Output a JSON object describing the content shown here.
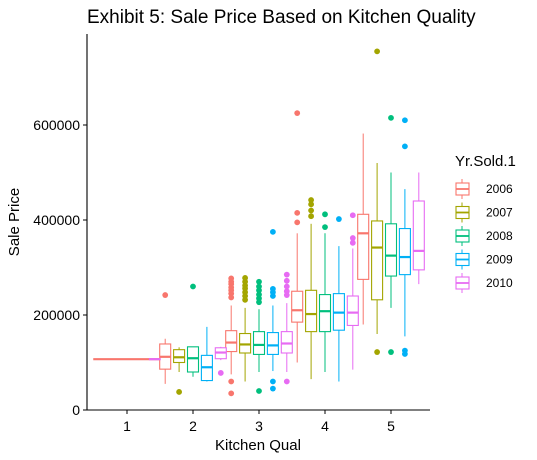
{
  "chart_data": {
    "type": "boxplot",
    "title": "Exhibit 5: Sale Price Based on Kitchen Quality",
    "xlabel": "Kitchen Qual",
    "ylabel": "Sale Price",
    "categories": [
      "1",
      "2",
      "3",
      "4",
      "5"
    ],
    "ylim": [
      0,
      775000
    ],
    "yticks": [
      0,
      200000,
      400000,
      600000
    ],
    "ytick_labels": [
      "0",
      "200000",
      "400000",
      "600000"
    ],
    "grid": false,
    "legend": {
      "title": "Yr.Sold.1",
      "position": "right"
    },
    "series": [
      {
        "name": "2006",
        "color": "#F8766D",
        "boxes": [
          {
            "category": "1",
            "whisker_low": 107000,
            "q1": 107000,
            "median": 107000,
            "q3": 107000,
            "whisker_high": 107000,
            "outliers": []
          },
          {
            "category": "2",
            "whisker_low": 55000,
            "q1": 86000,
            "median": 112000,
            "q3": 139000,
            "whisker_high": 150000,
            "outliers": [
              242000
            ]
          },
          {
            "category": "3",
            "whisker_low": 75000,
            "q1": 123000,
            "median": 142000,
            "q3": 167000,
            "whisker_high": 220000,
            "outliers": [
              237000,
              245000,
              252000,
              258000,
              265000,
              270000,
              277000,
              60000,
              35000
            ]
          },
          {
            "category": "4",
            "whisker_low": 100000,
            "q1": 185000,
            "median": 210000,
            "q3": 250000,
            "whisker_high": 372000,
            "outliers": [
              395000,
              415000,
              625000
            ]
          },
          {
            "category": "5",
            "whisker_low": 180000,
            "q1": 275000,
            "median": 372000,
            "q3": 412000,
            "whisker_high": 582000,
            "outliers": []
          }
        ]
      },
      {
        "name": "2007",
        "color": "#A3A500",
        "boxes": [
          {
            "category": "2",
            "whisker_low": 80000,
            "q1": 100000,
            "median": 111000,
            "q3": 127000,
            "whisker_high": 132000,
            "outliers": [
              38000
            ]
          },
          {
            "category": "3",
            "whisker_low": 60000,
            "q1": 120000,
            "median": 138000,
            "q3": 161000,
            "whisker_high": 215000,
            "outliers": [
              232000,
              240000,
              248000,
              256000,
              262000,
              270000,
              278000
            ]
          },
          {
            "category": "4",
            "whisker_low": 65000,
            "q1": 165000,
            "median": 202000,
            "q3": 252000,
            "whisker_high": 392000,
            "outliers": [
              408000,
              420000,
              433000,
              442000
            ]
          },
          {
            "category": "5",
            "whisker_low": 160000,
            "q1": 232000,
            "median": 342000,
            "q3": 398000,
            "whisker_high": 520000,
            "outliers": [
              755000,
              122000
            ]
          }
        ]
      },
      {
        "name": "2008",
        "color": "#00BF7D",
        "boxes": [
          {
            "category": "2",
            "whisker_low": 70000,
            "q1": 80000,
            "median": 109000,
            "q3": 133000,
            "whisker_high": 133000,
            "outliers": [
              260000
            ]
          },
          {
            "category": "3",
            "whisker_low": 80000,
            "q1": 117000,
            "median": 137000,
            "q3": 165000,
            "whisker_high": 212000,
            "outliers": [
              227000,
              235000,
              243000,
              252000,
              260000,
              270000,
              40000
            ]
          },
          {
            "category": "4",
            "whisker_low": 80000,
            "q1": 165000,
            "median": 208000,
            "q3": 243000,
            "whisker_high": 372000,
            "outliers": [
              385000,
              412000
            ]
          },
          {
            "category": "5",
            "whisker_low": 215000,
            "q1": 282000,
            "median": 325000,
            "q3": 392000,
            "whisker_high": 500000,
            "outliers": [
              615000,
              122000
            ]
          }
        ]
      },
      {
        "name": "2009",
        "color": "#00B0F6",
        "boxes": [
          {
            "category": "2",
            "whisker_low": 60000,
            "q1": 62000,
            "median": 90000,
            "q3": 115000,
            "whisker_high": 175000,
            "outliers": []
          },
          {
            "category": "3",
            "whisker_low": 82000,
            "q1": 117000,
            "median": 136000,
            "q3": 163000,
            "whisker_high": 220000,
            "outliers": [
              240000,
              248000,
              255000,
              375000,
              60000,
              45000
            ]
          },
          {
            "category": "4",
            "whisker_low": 60000,
            "q1": 168000,
            "median": 205000,
            "q3": 245000,
            "whisker_high": 345000,
            "outliers": [
              402000
            ]
          },
          {
            "category": "5",
            "whisker_low": 155000,
            "q1": 285000,
            "median": 322000,
            "q3": 382000,
            "whisker_high": 465000,
            "outliers": [
              610000,
              555000,
              125000,
              118000
            ]
          }
        ]
      },
      {
        "name": "2010",
        "color": "#E76BF3",
        "boxes": [
          {
            "category": "1",
            "whisker_low": 107000,
            "q1": 107000,
            "median": 107000,
            "q3": 107000,
            "whisker_high": 107000,
            "outliers": []
          },
          {
            "category": "2",
            "whisker_low": 105000,
            "q1": 108000,
            "median": 121000,
            "q3": 131000,
            "whisker_high": 133000,
            "outliers": [
              78000
            ]
          },
          {
            "category": "3",
            "whisker_low": 80000,
            "q1": 120000,
            "median": 140000,
            "q3": 165000,
            "whisker_high": 225000,
            "outliers": [
              242000,
              250000,
              260000,
              272000,
              285000,
              60000
            ]
          },
          {
            "category": "4",
            "whisker_low": 85000,
            "q1": 178000,
            "median": 205000,
            "q3": 240000,
            "whisker_high": 340000,
            "outliers": [
              352000,
              362000,
              410000
            ]
          },
          {
            "category": "5",
            "whisker_low": 265000,
            "q1": 295000,
            "median": 335000,
            "q3": 440000,
            "whisker_high": 500000,
            "outliers": []
          }
        ]
      }
    ]
  }
}
